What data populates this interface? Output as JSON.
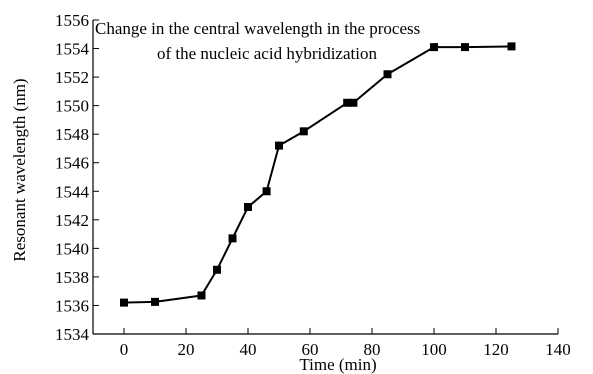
{
  "chart_data": {
    "type": "line",
    "title_lines": [
      "Change in the central wavelength in the process",
      "of the nucleic acid hybridization"
    ],
    "xlabel": "Time (min)",
    "ylabel": "Resonant wavelength (nm)",
    "xlim": [
      -10,
      140
    ],
    "ylim": [
      1534,
      1556
    ],
    "x_ticks": [
      0,
      20,
      40,
      60,
      80,
      100,
      120,
      140
    ],
    "x_tick_labels": [
      "0",
      "20",
      "40",
      "60",
      "80",
      "100",
      "120",
      "140"
    ],
    "y_ticks": [
      1534,
      1536,
      1538,
      1540,
      1542,
      1544,
      1546,
      1548,
      1550,
      1552,
      1554,
      1556
    ],
    "y_tick_labels": [
      "1534",
      "1536",
      "1538",
      "1540",
      "1542",
      "1544",
      "1546",
      "1548",
      "1550",
      "1552",
      "1554",
      "1556"
    ],
    "grid": false,
    "marker": "square",
    "series": [
      {
        "x": [
          0,
          10,
          25,
          30,
          35,
          40,
          46,
          50,
          58,
          72,
          74,
          85,
          100,
          110,
          125
        ],
        "y": [
          1536.2,
          1536.25,
          1536.7,
          1538.5,
          1540.7,
          1542.9,
          1544.0,
          1547.2,
          1548.2,
          1550.2,
          1550.2,
          1552.2,
          1554.1,
          1554.1,
          1554.15
        ]
      }
    ],
    "colors": {
      "line": "#000000",
      "marker": "#000000"
    }
  }
}
